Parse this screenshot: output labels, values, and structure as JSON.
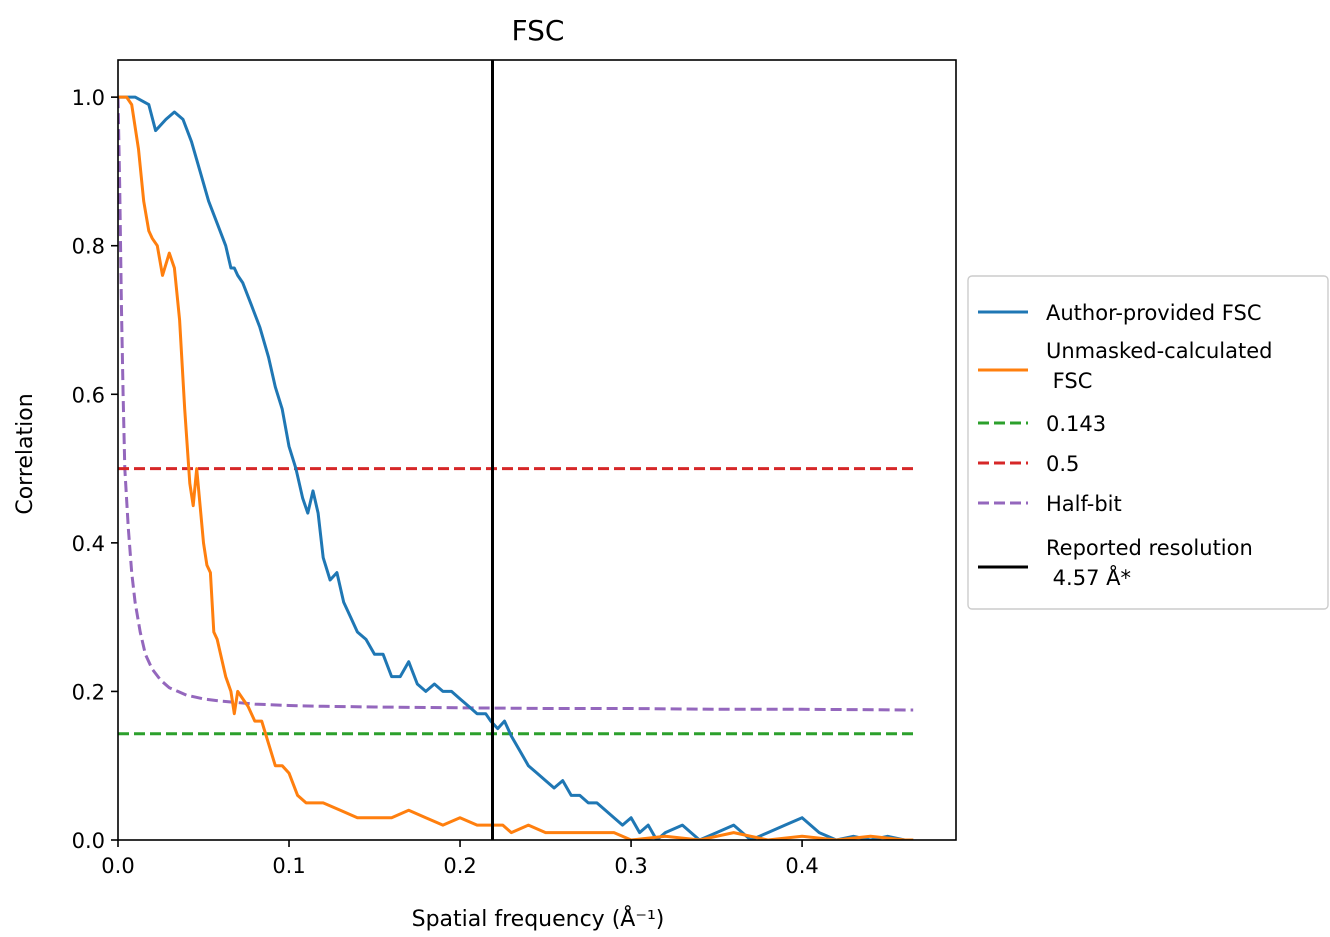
{
  "chart_data": {
    "type": "line",
    "title": "FSC",
    "xlabel": "Spatial frequency (Å⁻¹)",
    "ylabel": "Correlation",
    "xlim": [
      0.0,
      0.49
    ],
    "ylim": [
      0.0,
      1.05
    ],
    "x_ticks": [
      "0.0",
      "0.1",
      "0.2",
      "0.3",
      "0.4"
    ],
    "y_ticks": [
      "0.0",
      "0.2",
      "0.4",
      "0.6",
      "0.8",
      "1.0"
    ],
    "grid": false,
    "legend_position": "outside-right",
    "series": [
      {
        "name": "Author-provided FSC",
        "color": "#1f77b4",
        "style": "solid",
        "x": [
          0.0,
          0.01,
          0.018,
          0.022,
          0.028,
          0.033,
          0.038,
          0.043,
          0.048,
          0.053,
          0.058,
          0.063,
          0.066,
          0.068,
          0.07,
          0.073,
          0.078,
          0.083,
          0.088,
          0.092,
          0.096,
          0.1,
          0.104,
          0.108,
          0.111,
          0.114,
          0.117,
          0.12,
          0.124,
          0.128,
          0.132,
          0.136,
          0.14,
          0.145,
          0.15,
          0.155,
          0.16,
          0.165,
          0.17,
          0.175,
          0.18,
          0.185,
          0.19,
          0.195,
          0.2,
          0.205,
          0.21,
          0.215,
          0.218,
          0.222,
          0.226,
          0.23,
          0.235,
          0.24,
          0.245,
          0.25,
          0.255,
          0.26,
          0.265,
          0.27,
          0.275,
          0.28,
          0.285,
          0.29,
          0.295,
          0.3,
          0.305,
          0.31,
          0.315,
          0.32,
          0.33,
          0.34,
          0.35,
          0.36,
          0.37,
          0.38,
          0.39,
          0.4,
          0.41,
          0.42,
          0.43,
          0.44,
          0.45,
          0.46,
          0.465
        ],
        "y": [
          1.0,
          1.0,
          0.99,
          0.955,
          0.97,
          0.98,
          0.97,
          0.94,
          0.9,
          0.86,
          0.83,
          0.8,
          0.77,
          0.77,
          0.76,
          0.75,
          0.72,
          0.69,
          0.65,
          0.61,
          0.58,
          0.53,
          0.5,
          0.46,
          0.44,
          0.47,
          0.44,
          0.38,
          0.35,
          0.36,
          0.32,
          0.3,
          0.28,
          0.27,
          0.25,
          0.25,
          0.22,
          0.22,
          0.24,
          0.21,
          0.2,
          0.21,
          0.2,
          0.2,
          0.19,
          0.18,
          0.17,
          0.17,
          0.16,
          0.15,
          0.16,
          0.14,
          0.12,
          0.1,
          0.09,
          0.08,
          0.07,
          0.08,
          0.06,
          0.06,
          0.05,
          0.05,
          0.04,
          0.03,
          0.02,
          0.03,
          0.01,
          0.02,
          0.0,
          0.01,
          0.02,
          0.0,
          0.01,
          0.02,
          0.0,
          0.01,
          0.02,
          0.03,
          0.01,
          0.0,
          0.005,
          0.0,
          0.005,
          0.0,
          0.0
        ]
      },
      {
        "name": "Unmasked-calculated\n FSC",
        "color": "#ff7f0e",
        "style": "solid",
        "x": [
          0.0,
          0.005,
          0.008,
          0.01,
          0.012,
          0.015,
          0.018,
          0.02,
          0.023,
          0.026,
          0.03,
          0.033,
          0.036,
          0.039,
          0.042,
          0.044,
          0.046,
          0.048,
          0.05,
          0.052,
          0.054,
          0.056,
          0.058,
          0.06,
          0.063,
          0.066,
          0.068,
          0.07,
          0.073,
          0.076,
          0.08,
          0.084,
          0.088,
          0.092,
          0.096,
          0.1,
          0.105,
          0.11,
          0.12,
          0.13,
          0.14,
          0.15,
          0.16,
          0.17,
          0.18,
          0.19,
          0.2,
          0.21,
          0.218,
          0.225,
          0.23,
          0.24,
          0.25,
          0.26,
          0.27,
          0.28,
          0.29,
          0.3,
          0.32,
          0.34,
          0.36,
          0.38,
          0.4,
          0.42,
          0.44,
          0.46,
          0.465
        ],
        "y": [
          1.0,
          1.0,
          0.99,
          0.96,
          0.93,
          0.86,
          0.82,
          0.81,
          0.8,
          0.76,
          0.79,
          0.77,
          0.7,
          0.58,
          0.48,
          0.45,
          0.5,
          0.45,
          0.4,
          0.37,
          0.36,
          0.28,
          0.27,
          0.25,
          0.22,
          0.2,
          0.17,
          0.2,
          0.19,
          0.18,
          0.16,
          0.16,
          0.13,
          0.1,
          0.1,
          0.09,
          0.06,
          0.05,
          0.05,
          0.04,
          0.03,
          0.03,
          0.03,
          0.04,
          0.03,
          0.02,
          0.03,
          0.02,
          0.02,
          0.02,
          0.01,
          0.02,
          0.01,
          0.01,
          0.01,
          0.01,
          0.01,
          0.0,
          0.005,
          0.0,
          0.01,
          0.0,
          0.005,
          0.0,
          0.005,
          0.0,
          0.0
        ]
      },
      {
        "name": "0.143",
        "color": "#2ca02c",
        "style": "dashed",
        "x": [
          0.0,
          0.465
        ],
        "y": [
          0.143,
          0.143
        ]
      },
      {
        "name": "0.5",
        "color": "#d62728",
        "style": "dashed",
        "x": [
          0.0,
          0.465
        ],
        "y": [
          0.5,
          0.5
        ]
      },
      {
        "name": "Half-bit",
        "color": "#9467bd",
        "style": "dashed",
        "x": [
          0.0,
          0.001,
          0.002,
          0.003,
          0.004,
          0.006,
          0.008,
          0.01,
          0.013,
          0.016,
          0.02,
          0.025,
          0.03,
          0.035,
          0.04,
          0.05,
          0.06,
          0.07,
          0.08,
          0.1,
          0.12,
          0.15,
          0.2,
          0.25,
          0.3,
          0.35,
          0.4,
          0.465
        ],
        "y": [
          1.0,
          0.88,
          0.72,
          0.6,
          0.5,
          0.42,
          0.36,
          0.32,
          0.28,
          0.25,
          0.23,
          0.215,
          0.205,
          0.2,
          0.195,
          0.19,
          0.187,
          0.185,
          0.183,
          0.181,
          0.18,
          0.179,
          0.178,
          0.177,
          0.177,
          0.176,
          0.176,
          0.175
        ]
      },
      {
        "name": "Reported resolution\n 4.57 Å*",
        "color": "#000000",
        "style": "solid",
        "x": [
          0.219,
          0.219
        ],
        "y": [
          0.0,
          1.05
        ]
      }
    ]
  }
}
